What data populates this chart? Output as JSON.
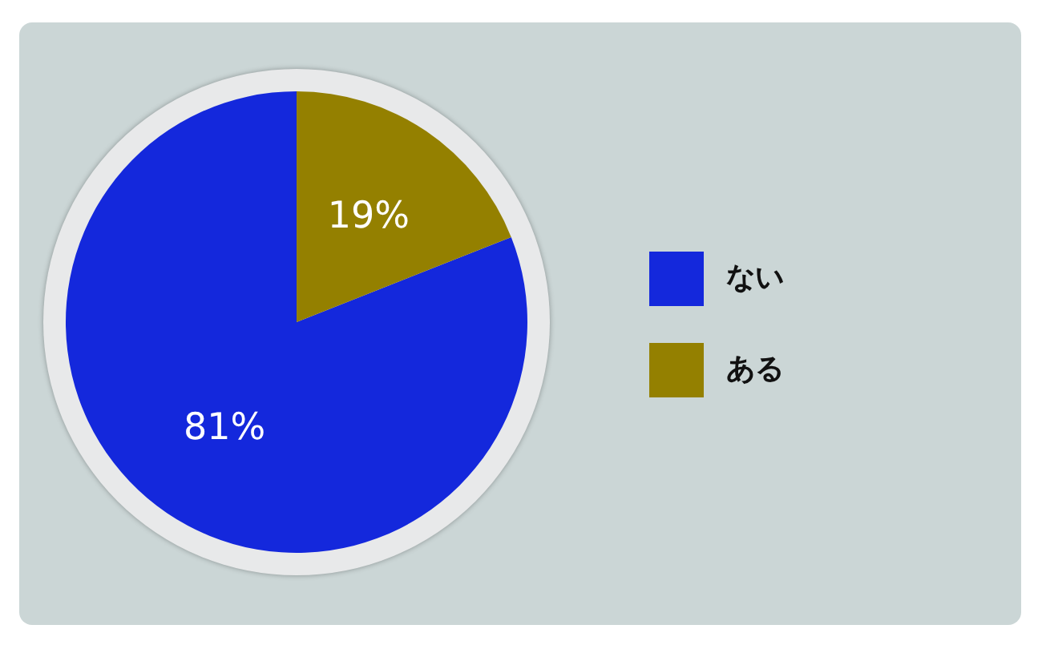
{
  "chart_data": {
    "type": "pie",
    "categories": [
      "ない",
      "ある"
    ],
    "values": [
      81,
      19
    ],
    "colors": [
      "#1428dc",
      "#948000"
    ],
    "value_labels": [
      "81%",
      "19%"
    ],
    "legend": "right"
  }
}
